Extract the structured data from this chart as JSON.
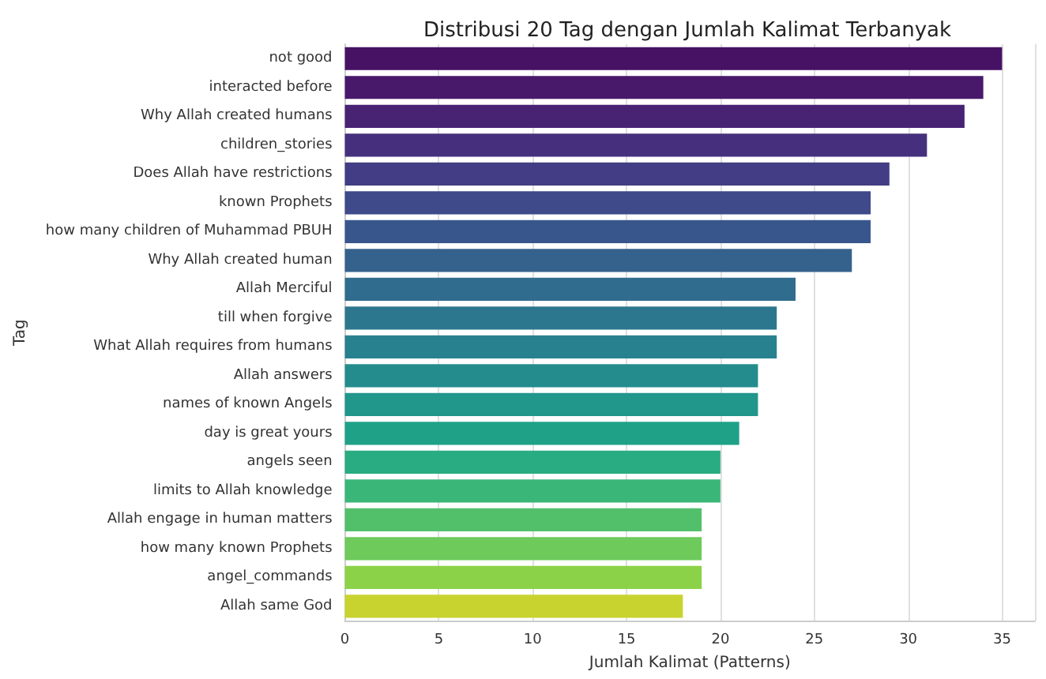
{
  "chart_data": {
    "type": "bar",
    "orientation": "horizontal",
    "title": "Distribusi 20 Tag dengan Jumlah Kalimat Terbanyak",
    "xlabel": "Jumlah Kalimat (Patterns)",
    "ylabel": "Tag",
    "categories": [
      "not good",
      "interacted before",
      "Why Allah created humans",
      "children_stories",
      "Does Allah have restrictions",
      "known Prophets",
      "how many children of Muhammad PBUH",
      "Why Allah created human",
      "Allah Merciful",
      "till when forgive",
      "What Allah requires from humans",
      "Allah answers",
      "names of known Angels",
      "day is great yours",
      "angels seen",
      "limits to Allah knowledge",
      "Allah engage in human matters",
      "how many known Prophets",
      "angel_commands",
      "Allah same God"
    ],
    "values": [
      35,
      34,
      33,
      31,
      29,
      28,
      28,
      27,
      24,
      23,
      23,
      22,
      22,
      21,
      20,
      20,
      19,
      19,
      19,
      18
    ],
    "colors": [
      "#471164",
      "#48186a",
      "#482374",
      "#46307e",
      "#423d84",
      "#3e4a89",
      "#39568c",
      "#35628d",
      "#306c8e",
      "#2c778e",
      "#28818e",
      "#248c8d",
      "#21968b",
      "#1fa188",
      "#29ac81",
      "#3ab678",
      "#52c06b",
      "#6dca5b",
      "#8bd248",
      "#c9d32f"
    ],
    "xlim": [
      0,
      36.75
    ],
    "xticks": [
      0,
      5,
      10,
      15,
      20,
      25,
      30,
      35
    ],
    "grid": "x"
  }
}
